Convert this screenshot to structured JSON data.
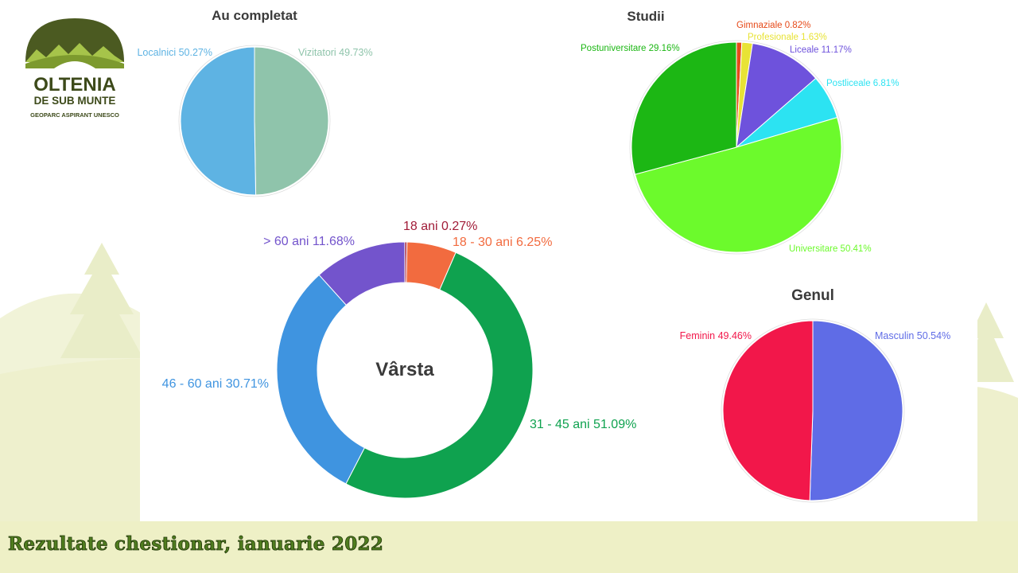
{
  "logo": {
    "line1": "OLTENIA",
    "line2": "DE SUB MUNTE",
    "line3": "GEOPARC ASPIRANT UNESCO",
    "colors": {
      "dark_green": "#4b5a21",
      "light_green": "#a6c44a",
      "text": "#3d4a1a"
    }
  },
  "footer": {
    "text": "Rezultate chestionar, ianuarie 2022"
  },
  "chart_data": [
    {
      "type": "pie",
      "title": "Au completat",
      "slices": [
        {
          "label": "Vizitatori",
          "value": 49.73,
          "display": "Vizitatori 49.73%",
          "color": "#8fc4ab"
        },
        {
          "label": "Localnici",
          "value": 50.27,
          "display": "Localnici 50.27%",
          "color": "#5eb3e3"
        }
      ]
    },
    {
      "type": "pie",
      "title": "Studii",
      "slices": [
        {
          "label": "Gimnaziale",
          "value": 0.82,
          "display": "Gimnaziale 0.82%",
          "color": "#e64a19"
        },
        {
          "label": "Profesionale",
          "value": 1.63,
          "display": "Profesionale 1.63%",
          "color": "#e8e335"
        },
        {
          "label": "Liceale",
          "value": 11.17,
          "display": "Liceale 11.17%",
          "color": "#6e52dc"
        },
        {
          "label": "Postliceale",
          "value": 6.81,
          "display": "Postliceale 6.81%",
          "color": "#2ce3f2"
        },
        {
          "label": "Universitare",
          "value": 50.41,
          "display": "Universitare 50.41%",
          "color": "#6cfa2c"
        },
        {
          "label": "Postuniversitare",
          "value": 29.16,
          "display": "Postuniversitare 29.16%",
          "color": "#1cb714"
        }
      ]
    },
    {
      "type": "donut",
      "title": "Vârsta",
      "slices": [
        {
          "label": "18 ani",
          "value": 0.27,
          "display": "18 ani  0.27%",
          "color": "#a11c38"
        },
        {
          "label": "18 - 30 ani",
          "value": 6.25,
          "display": "18 - 30 ani  6.25%",
          "color": "#f26b3f"
        },
        {
          "label": "31 - 45 ani",
          "value": 51.09,
          "display": "31 - 45 ani  51.09%",
          "color": "#0fa24f"
        },
        {
          "label": "46 - 60 ani",
          "value": 30.71,
          "display": "46 - 60 ani  30.71%",
          "color": "#3f94e0"
        },
        {
          "label": "> 60 ani",
          "value": 11.68,
          "display": "> 60 ani  11.68%",
          "color": "#7354cc"
        }
      ]
    },
    {
      "type": "pie",
      "title": "Genul",
      "slices": [
        {
          "label": "Masculin",
          "value": 50.54,
          "display": "Masculin 50.54%",
          "color": "#5f6ce6"
        },
        {
          "label": "Feminin",
          "value": 49.46,
          "display": "Feminin 49.46%",
          "color": "#f2174a"
        }
      ]
    }
  ]
}
